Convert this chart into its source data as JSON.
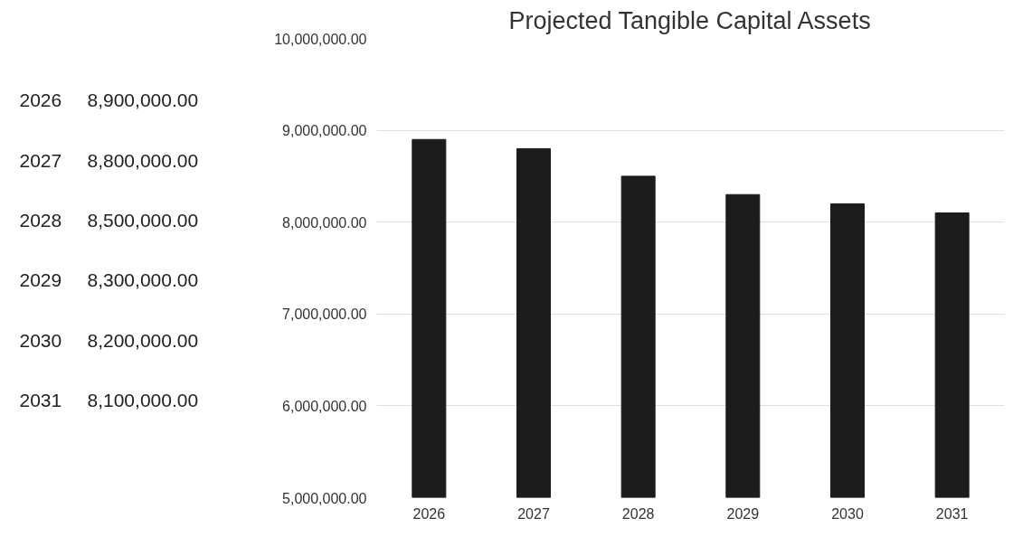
{
  "chart_data": {
    "type": "bar",
    "title": "Projected Tangible Capital Assets",
    "categories": [
      "2026",
      "2027",
      "2028",
      "2029",
      "2030",
      "2031"
    ],
    "values": [
      8900000,
      8800000,
      8500000,
      8300000,
      8200000,
      8100000
    ],
    "annotations": [
      "2026",
      "8,900,000.00",
      "2027",
      "8,800,000.00",
      "2028",
      "8,500,000.00",
      "2029",
      "8,300,000.00",
      "2030",
      "8,200,000.00",
      "2031",
      "8,100,000.00"
    ],
    "color": "#1c1c1c",
    "ylim": [
      5000000,
      10000000
    ],
    "yticks": [
      {
        "value": 5000000,
        "label": "5,000,000.00"
      },
      {
        "value": 6000000,
        "label": "6,000,000.00"
      },
      {
        "value": 7000000,
        "label": "7,000,000.00"
      },
      {
        "value": 8000000,
        "label": "8,000,000.00"
      },
      {
        "value": 9000000,
        "label": "9,000,000.00"
      },
      {
        "value": 10000000,
        "label": "10,000,000.00"
      }
    ],
    "grid": "y"
  }
}
